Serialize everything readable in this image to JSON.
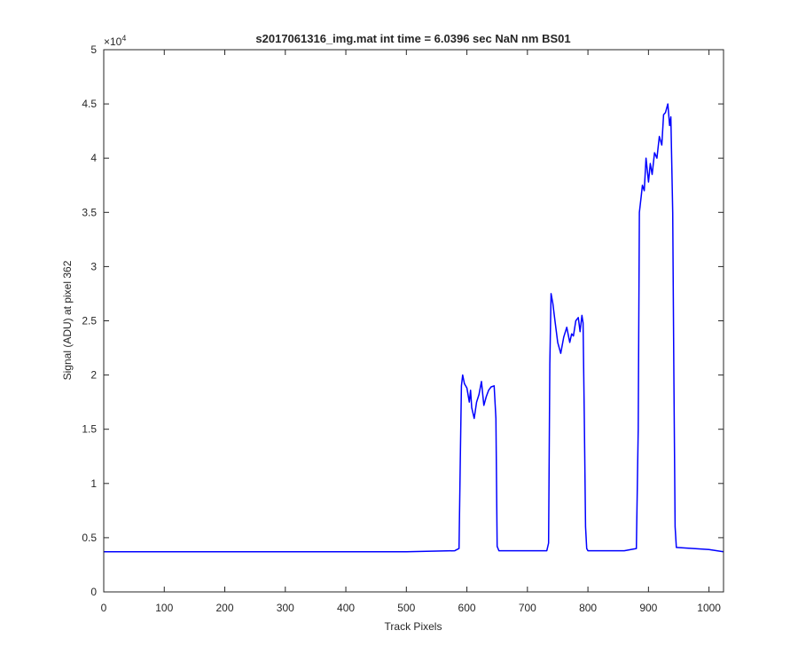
{
  "chart_data": {
    "type": "line",
    "title": "s2017061316_img.mat int time = 6.0396 sec  NaN nm BS01",
    "xlabel": "Track Pixels",
    "ylabel": "Signal (ADU) at pixel 362",
    "xlim": [
      0,
      1024
    ],
    "ylim": [
      0,
      5
    ],
    "y_multiplier_base": "×10",
    "y_multiplier_exp": "4",
    "x_ticks": [
      0,
      100,
      200,
      300,
      400,
      500,
      600,
      700,
      800,
      900,
      1000
    ],
    "x_tick_labels": [
      "0",
      "100",
      "200",
      "300",
      "400",
      "500",
      "600",
      "700",
      "800",
      "900",
      "1000"
    ],
    "y_ticks": [
      0,
      0.5,
      1,
      1.5,
      2,
      2.5,
      3,
      3.5,
      4,
      4.5,
      5
    ],
    "y_tick_labels": [
      "0",
      "0.5",
      "1",
      "1.5",
      "2",
      "2.5",
      "3",
      "3.5",
      "4",
      "4.5",
      "5"
    ],
    "grid": false,
    "line_color": "#0000ff",
    "series": [
      {
        "x": [
          0,
          100,
          200,
          300,
          400,
          500,
          580,
          587,
          589,
          591,
          593,
          596,
          600,
          604,
          606,
          608,
          612,
          616,
          620,
          624,
          628,
          632,
          636,
          640,
          645,
          648,
          650,
          653,
          656,
          700,
          732,
          735,
          737,
          739,
          742,
          746,
          750,
          755,
          760,
          765,
          770,
          773,
          776,
          780,
          784,
          787,
          790,
          792,
          794,
          796,
          798,
          800,
          860,
          880,
          883,
          885,
          888,
          890,
          893,
          896,
          900,
          903,
          906,
          910,
          914,
          918,
          922,
          925,
          928,
          932,
          935,
          937,
          940,
          942,
          944,
          946,
          1000,
          1024
        ],
        "y": [
          0.37,
          0.37,
          0.37,
          0.37,
          0.37,
          0.37,
          0.38,
          0.4,
          1.2,
          1.9,
          2.0,
          1.92,
          1.88,
          1.75,
          1.86,
          1.7,
          1.6,
          1.75,
          1.82,
          1.94,
          1.72,
          1.8,
          1.86,
          1.89,
          1.9,
          1.6,
          0.42,
          0.38,
          0.38,
          0.38,
          0.38,
          0.45,
          2.1,
          2.75,
          2.66,
          2.48,
          2.3,
          2.2,
          2.35,
          2.44,
          2.3,
          2.38,
          2.36,
          2.5,
          2.53,
          2.4,
          2.55,
          2.48,
          1.6,
          0.6,
          0.4,
          0.38,
          0.38,
          0.4,
          1.5,
          3.5,
          3.65,
          3.75,
          3.7,
          4.0,
          3.78,
          3.95,
          3.85,
          4.05,
          4.0,
          4.2,
          4.12,
          4.4,
          4.42,
          4.5,
          4.3,
          4.38,
          3.5,
          2.0,
          0.6,
          0.41,
          0.39,
          0.37
        ]
      }
    ]
  }
}
